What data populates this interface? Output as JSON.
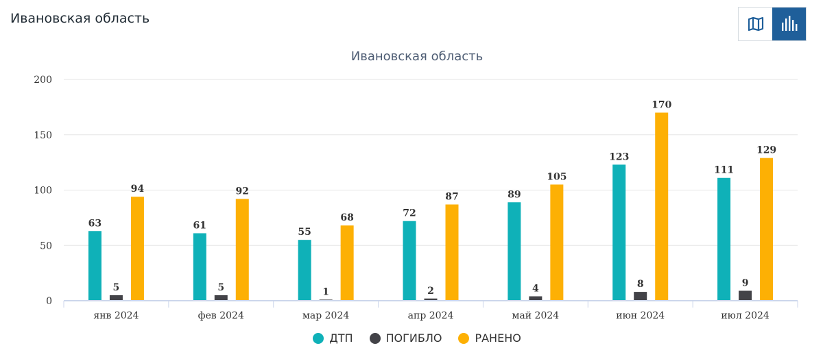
{
  "page": {
    "title": "Ивановская область"
  },
  "toggle": {
    "map_icon": "map-icon",
    "bars_icon": "bar-chart-icon",
    "active": "bars"
  },
  "chart_data": {
    "type": "bar",
    "title": "Ивановская область",
    "categories": [
      "янв 2024",
      "фев 2024",
      "мар 2024",
      "апр 2024",
      "май 2024",
      "июн 2024",
      "июл 2024"
    ],
    "series": [
      {
        "name": "ДТП",
        "color": "#0fb1b8",
        "values": [
          63,
          61,
          55,
          72,
          89,
          123,
          111
        ]
      },
      {
        "name": "ПОГИБЛО",
        "color": "#434348",
        "values": [
          5,
          5,
          1,
          2,
          4,
          8,
          9
        ]
      },
      {
        "name": "РАНЕНО",
        "color": "#fdb004",
        "values": [
          94,
          92,
          68,
          87,
          105,
          170,
          129
        ]
      }
    ],
    "ylim": [
      0,
      200
    ],
    "yticks": [
      0,
      50,
      100,
      150,
      200
    ],
    "xlabel": "",
    "ylabel": "",
    "grid": true,
    "legend": "bottom-center"
  }
}
